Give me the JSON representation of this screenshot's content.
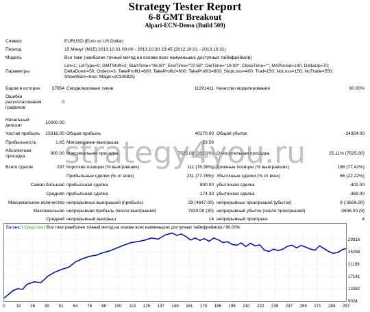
{
  "header": {
    "title": "Strategy Tester Report",
    "subtitle": "6-8 GMT Breakout",
    "server": "Alpari-ECN-Demo (Build 509)"
  },
  "info": {
    "symbol_label": "Символ",
    "symbol_value": "EURUSD (Euro vs US Dollar)",
    "period_label": "Период",
    "period_value": "15 Минут (M15) 2013.10.01 00:00 - 2013.10.30 23:45 (2012.10.01 - 2013.10.31)",
    "model_label": "Модель",
    "model_value": "Все тики (наиболее точный метод на основе всех наименьших доступных таймфреймов)",
    "params_label": "Параметры",
    "params_line1": "Lot=1; LotType=0; GMTShift=2; StartTime=\"06:00\"; EndTime=\"07:59\"; DelTime=\"19:00\"; CloseTime=\"\"; MAPeriod=140; DeltaUp=70;",
    "params_line2": "DeltaDown=50; Orders=3; TakeProfit1=600; TakeProfit2=600; TakeProfit3=800; StopLoss=400; Trail=150; NoLoss=150; NoTrade=550;",
    "params_line3": "ShowWarn=true; Magic=20100825;"
  },
  "stats": {
    "bars_label": "Баров в истории",
    "bars_value": "27854",
    "ticks_label": "Смоделировано тиков",
    "ticks_value": "11291411",
    "quality_label": "Качество моделирования",
    "quality_value": "90.00%",
    "errors_label1": "Ошибки",
    "errors_label2": "рассогласования",
    "errors_label3": "графиков",
    "errors_value": "0",
    "deposit_label1": "Начальный",
    "deposit_label2": "депозит",
    "deposit_value": "10000.00",
    "net_label": "Чистая прибыль",
    "net_value": "15916.00",
    "gross_profit_label": "Общая прибыль",
    "gross_profit_value": "40270.00",
    "gross_loss_label": "Общий убыток",
    "gross_loss_value": "-24354.00",
    "pf_label": "Прибыльность",
    "pf_value": "1.65",
    "exp_label": "Матожидание выигрыша",
    "exp_value": "53.59",
    "abs_dd_label1": "Абсолютная",
    "abs_dd_label2": "просадка",
    "abs_dd_value": "900.00",
    "max_dd_label": "Максимальная просадка",
    "max_dd_value": "7525.00 (28.01%)",
    "rel_dd_label": "Относительная просадка",
    "rel_dd_value": "25.11% (7525.00)",
    "total_label": "Всего сделок",
    "total_value": "297",
    "short_label": "Короткие позиции (% выигравших)",
    "short_value": "111 (78.38%)",
    "long_label": "Длинные позиции (% выигравших)",
    "long_value": "186 (77.42%)",
    "profit_trades_label": "Прибыльные сделки (% от всех)",
    "profit_trades_value": "231 (77.78%)",
    "loss_trades_label": "Убыточные сделки (% от всех)",
    "loss_trades_value": "66 (22.22%)",
    "largest_label": "Самая большая",
    "largest_p_label": "прибыльная сделка",
    "largest_p_value": "800.00",
    "largest_l_label": "убыточная сделка",
    "largest_l_value": "-402.00",
    "avg_label": "Средняя",
    "avg_p_label": "прибыльная сделка",
    "avg_p_value": "174.33",
    "avg_l_label": "убыточная сделка",
    "avg_l_value": "-369.00",
    "maxc_label": "Максимальное количество",
    "maxc_p_label": "непрерывных выигрышей (прибыль)",
    "maxc_p_value": "33 (4647.00)",
    "maxc_l_label": "непрерывных проигрышей (убыток)",
    "maxc_l_value": "9 (-3606.00)",
    "maxs_label": "Максимальная",
    "maxs_p_label": "непрерывная прибыль (число выигрышей)",
    "maxs_p_value": "7930.00 (30)",
    "maxs_l_label": "непрерывный убыток (число проигрышей)",
    "maxs_l_value": "-3606.00 (9)",
    "avgc_label": "Средний",
    "avgc_p_label": "непрерывный выигрыш",
    "avgc_p_value": "14",
    "avgc_l_label": "непрерывный проигрыш",
    "avgc_l_value": "4"
  },
  "watermark": "strategy4you.ru",
  "chart_data": {
    "type": "line",
    "legend_balance": "Баланс",
    "legend_equity": "Средства",
    "legend_rest": "Все тики (наиболее точный метод на основе всех наименьших доступных таймфреймов) / 90.00%",
    "colors": {
      "balance": "#0000cc",
      "equity": "#33aa33",
      "grid": "#c0c0c0"
    },
    "y_ticks": [
      "29316",
      "25258",
      "21199",
      "17141",
      "13082",
      "9024"
    ],
    "x_ticks": [
      "0",
      "14",
      "26",
      "39",
      "51",
      "64",
      "76",
      "88",
      "100",
      "113",
      "125",
      "137",
      "149",
      "161",
      "173",
      "186",
      "198",
      "210",
      "222",
      "235",
      "247",
      "259",
      "271",
      "284",
      "297"
    ],
    "ylim": [
      9024,
      31500
    ],
    "xlim": [
      0,
      297
    ],
    "balance": [
      [
        0,
        10000
      ],
      [
        4,
        11200
      ],
      [
        8,
        12400
      ],
      [
        12,
        13000
      ],
      [
        16,
        12800
      ],
      [
        20,
        14400
      ],
      [
        26,
        15200
      ],
      [
        32,
        15000
      ],
      [
        38,
        17000
      ],
      [
        44,
        18300
      ],
      [
        50,
        19200
      ],
      [
        56,
        19900
      ],
      [
        62,
        21600
      ],
      [
        68,
        22600
      ],
      [
        74,
        23400
      ],
      [
        80,
        23800
      ],
      [
        86,
        24600
      ],
      [
        92,
        25200
      ],
      [
        98,
        26100
      ],
      [
        104,
        27000
      ],
      [
        110,
        27800
      ],
      [
        116,
        28200
      ],
      [
        122,
        28600
      ],
      [
        128,
        29300
      ],
      [
        134,
        29000
      ],
      [
        140,
        30300
      ],
      [
        146,
        30900
      ],
      [
        150,
        30200
      ],
      [
        154,
        30600
      ],
      [
        158,
        29800
      ],
      [
        162,
        28700
      ],
      [
        166,
        29300
      ],
      [
        170,
        28600
      ],
      [
        174,
        29100
      ],
      [
        178,
        28300
      ],
      [
        182,
        29300
      ],
      [
        186,
        28800
      ],
      [
        190,
        27900
      ],
      [
        194,
        28100
      ],
      [
        198,
        27300
      ],
      [
        202,
        27000
      ],
      [
        206,
        27700
      ],
      [
        210,
        26600
      ],
      [
        214,
        27600
      ],
      [
        218,
        26800
      ],
      [
        222,
        27100
      ],
      [
        226,
        25500
      ],
      [
        230,
        25000
      ],
      [
        234,
        25700
      ],
      [
        238,
        25300
      ],
      [
        242,
        25700
      ],
      [
        246,
        26600
      ],
      [
        250,
        27000
      ],
      [
        254,
        26200
      ],
      [
        258,
        26900
      ],
      [
        262,
        26400
      ],
      [
        266,
        25800
      ],
      [
        270,
        25400
      ],
      [
        274,
        26800
      ],
      [
        278,
        25900
      ],
      [
        282,
        25000
      ],
      [
        286,
        24400
      ],
      [
        290,
        24700
      ],
      [
        294,
        25600
      ],
      [
        297,
        25926
      ]
    ],
    "equity": [
      [
        0,
        10000
      ],
      [
        4,
        11300
      ],
      [
        8,
        12500
      ],
      [
        12,
        13100
      ],
      [
        16,
        12700
      ],
      [
        20,
        14500
      ],
      [
        26,
        15300
      ],
      [
        32,
        14900
      ],
      [
        38,
        17100
      ],
      [
        44,
        18400
      ],
      [
        50,
        19300
      ],
      [
        56,
        19800
      ],
      [
        62,
        21700
      ],
      [
        68,
        22700
      ],
      [
        74,
        23500
      ],
      [
        80,
        23700
      ],
      [
        86,
        24700
      ],
      [
        92,
        25300
      ],
      [
        98,
        26200
      ],
      [
        104,
        27100
      ],
      [
        110,
        27900
      ],
      [
        116,
        28100
      ],
      [
        122,
        28700
      ],
      [
        128,
        29400
      ],
      [
        134,
        28900
      ],
      [
        140,
        30400
      ],
      [
        146,
        31000
      ],
      [
        150,
        30100
      ],
      [
        154,
        30700
      ],
      [
        158,
        29700
      ],
      [
        162,
        28600
      ],
      [
        166,
        29400
      ],
      [
        170,
        28500
      ],
      [
        174,
        29200
      ],
      [
        178,
        28200
      ],
      [
        182,
        29400
      ],
      [
        186,
        28700
      ],
      [
        190,
        27800
      ],
      [
        194,
        28200
      ],
      [
        198,
        27200
      ],
      [
        202,
        26900
      ],
      [
        206,
        27800
      ],
      [
        210,
        26500
      ],
      [
        214,
        27700
      ],
      [
        218,
        26700
      ],
      [
        222,
        27200
      ],
      [
        226,
        25400
      ],
      [
        230,
        24900
      ],
      [
        234,
        25800
      ],
      [
        238,
        25200
      ],
      [
        242,
        25800
      ],
      [
        246,
        26700
      ],
      [
        250,
        27100
      ],
      [
        254,
        26100
      ],
      [
        258,
        27000
      ],
      [
        262,
        26300
      ],
      [
        266,
        25700
      ],
      [
        270,
        25300
      ],
      [
        274,
        26900
      ],
      [
        278,
        25800
      ],
      [
        282,
        24900
      ],
      [
        286,
        24300
      ],
      [
        290,
        24800
      ],
      [
        294,
        25700
      ],
      [
        297,
        25926
      ]
    ]
  }
}
